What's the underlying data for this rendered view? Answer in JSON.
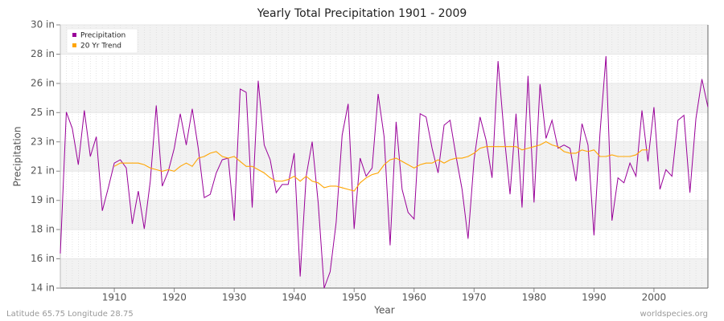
{
  "chart_data": {
    "type": "line",
    "title": "Yearly Total Precipitation 1901 - 2009",
    "xlabel": "Year",
    "ylabel": "Precipitation",
    "annotations": [
      "Latitude 65.75 Longitude 28.75",
      "worldspecies.org"
    ],
    "legend": "upper left",
    "grid": true,
    "xlim": [
      1901,
      2009
    ],
    "xticks": [
      1910,
      1920,
      1930,
      1940,
      1950,
      1960,
      1970,
      1980,
      1990,
      2000
    ],
    "ylim": [
      14,
      30
    ],
    "yticks": [
      {
        "value": 14,
        "label": "14 in"
      },
      {
        "value": 15.78,
        "label": "16 in"
      },
      {
        "value": 17.56,
        "label": "18 in"
      },
      {
        "value": 19.33,
        "label": "19 in"
      },
      {
        "value": 21.11,
        "label": "21 in"
      },
      {
        "value": 22.89,
        "label": "23 in"
      },
      {
        "value": 24.67,
        "label": "25 in"
      },
      {
        "value": 26.44,
        "label": "26 in"
      },
      {
        "value": 28.22,
        "label": "28 in"
      },
      {
        "value": 30,
        "label": "30 in"
      }
    ],
    "x": [
      1901,
      1902,
      1903,
      1904,
      1905,
      1906,
      1907,
      1908,
      1909,
      1910,
      1911,
      1912,
      1913,
      1914,
      1915,
      1916,
      1917,
      1918,
      1919,
      1920,
      1921,
      1922,
      1923,
      1924,
      1925,
      1926,
      1927,
      1928,
      1929,
      1930,
      1931,
      1932,
      1933,
      1934,
      1935,
      1936,
      1937,
      1938,
      1939,
      1940,
      1941,
      1942,
      1943,
      1944,
      1945,
      1946,
      1947,
      1948,
      1949,
      1950,
      1951,
      1952,
      1953,
      1954,
      1955,
      1956,
      1957,
      1958,
      1959,
      1960,
      1961,
      1962,
      1963,
      1964,
      1965,
      1966,
      1967,
      1968,
      1969,
      1970,
      1971,
      1972,
      1973,
      1974,
      1975,
      1976,
      1977,
      1978,
      1979,
      1980,
      1981,
      1982,
      1983,
      1984,
      1985,
      1986,
      1987,
      1988,
      1989,
      1990,
      1991,
      1992,
      1993,
      1994,
      1995,
      1996,
      1997,
      1998,
      1999,
      2000,
      2001,
      2002,
      2003,
      2004,
      2005,
      2006,
      2007,
      2008,
      2009
    ],
    "series": [
      {
        "name": "Precipitation",
        "color": "#990099",
        "values": [
          16.1,
          24.7,
          23.7,
          21.5,
          24.8,
          22.0,
          23.2,
          18.7,
          20.1,
          21.6,
          21.8,
          21.3,
          17.9,
          19.9,
          17.6,
          20.5,
          25.1,
          20.2,
          21.1,
          22.5,
          24.6,
          22.7,
          24.9,
          22.5,
          19.5,
          19.7,
          21.0,
          21.8,
          21.9,
          18.1,
          26.1,
          25.9,
          18.9,
          26.6,
          22.7,
          21.8,
          19.8,
          20.3,
          20.3,
          22.2,
          14.7,
          20.8,
          22.9,
          19.2,
          14.0,
          15.0,
          18.0,
          23.3,
          25.2,
          17.6,
          21.9,
          20.8,
          21.3,
          25.8,
          23.2,
          16.6,
          24.1,
          20.0,
          18.6,
          18.2,
          24.6,
          24.4,
          22.5,
          21.0,
          23.9,
          24.2,
          22.0,
          20.0,
          17.0,
          21.8,
          24.4,
          23.0,
          20.7,
          27.8,
          23.4,
          19.7,
          24.6,
          18.9,
          26.9,
          19.2,
          26.4,
          23.1,
          24.2,
          22.5,
          22.7,
          22.5,
          20.5,
          24.0,
          22.7,
          17.2,
          23.4,
          28.1,
          18.1,
          20.7,
          20.4,
          21.6,
          20.8,
          24.8,
          21.7,
          25.0,
          20.0,
          21.2,
          20.8,
          24.2,
          24.5,
          19.8,
          24.3,
          26.7,
          25.0
        ]
      },
      {
        "name": "20 Yr Trend",
        "color": "#ffa500",
        "values": [
          null,
          null,
          null,
          null,
          null,
          null,
          null,
          null,
          null,
          21.4,
          21.6,
          21.6,
          21.6,
          21.6,
          21.5,
          21.3,
          21.2,
          21.1,
          21.2,
          21.1,
          21.4,
          21.6,
          21.4,
          21.9,
          22.0,
          22.2,
          22.3,
          22.0,
          21.9,
          22.0,
          21.7,
          21.4,
          21.4,
          21.2,
          21.0,
          20.7,
          20.5,
          20.5,
          20.6,
          20.8,
          20.5,
          20.8,
          20.5,
          20.4,
          20.1,
          20.2,
          20.2,
          20.1,
          20.0,
          19.9,
          20.4,
          20.7,
          20.9,
          21.0,
          21.5,
          21.8,
          21.9,
          21.7,
          21.5,
          21.3,
          21.5,
          21.6,
          21.6,
          21.8,
          21.6,
          21.8,
          21.9,
          21.9,
          22.0,
          22.2,
          22.5,
          22.6,
          22.6,
          22.6,
          22.6,
          22.6,
          22.6,
          22.4,
          22.5,
          22.6,
          22.7,
          22.9,
          22.7,
          22.6,
          22.3,
          22.2,
          22.2,
          22.4,
          22.3,
          22.4,
          22.0,
          22.0,
          22.1,
          22.0,
          22.0,
          22.0,
          22.1,
          22.4,
          22.4,
          null,
          null,
          null,
          null,
          null,
          null,
          null,
          null,
          null,
          null
        ]
      }
    ]
  }
}
